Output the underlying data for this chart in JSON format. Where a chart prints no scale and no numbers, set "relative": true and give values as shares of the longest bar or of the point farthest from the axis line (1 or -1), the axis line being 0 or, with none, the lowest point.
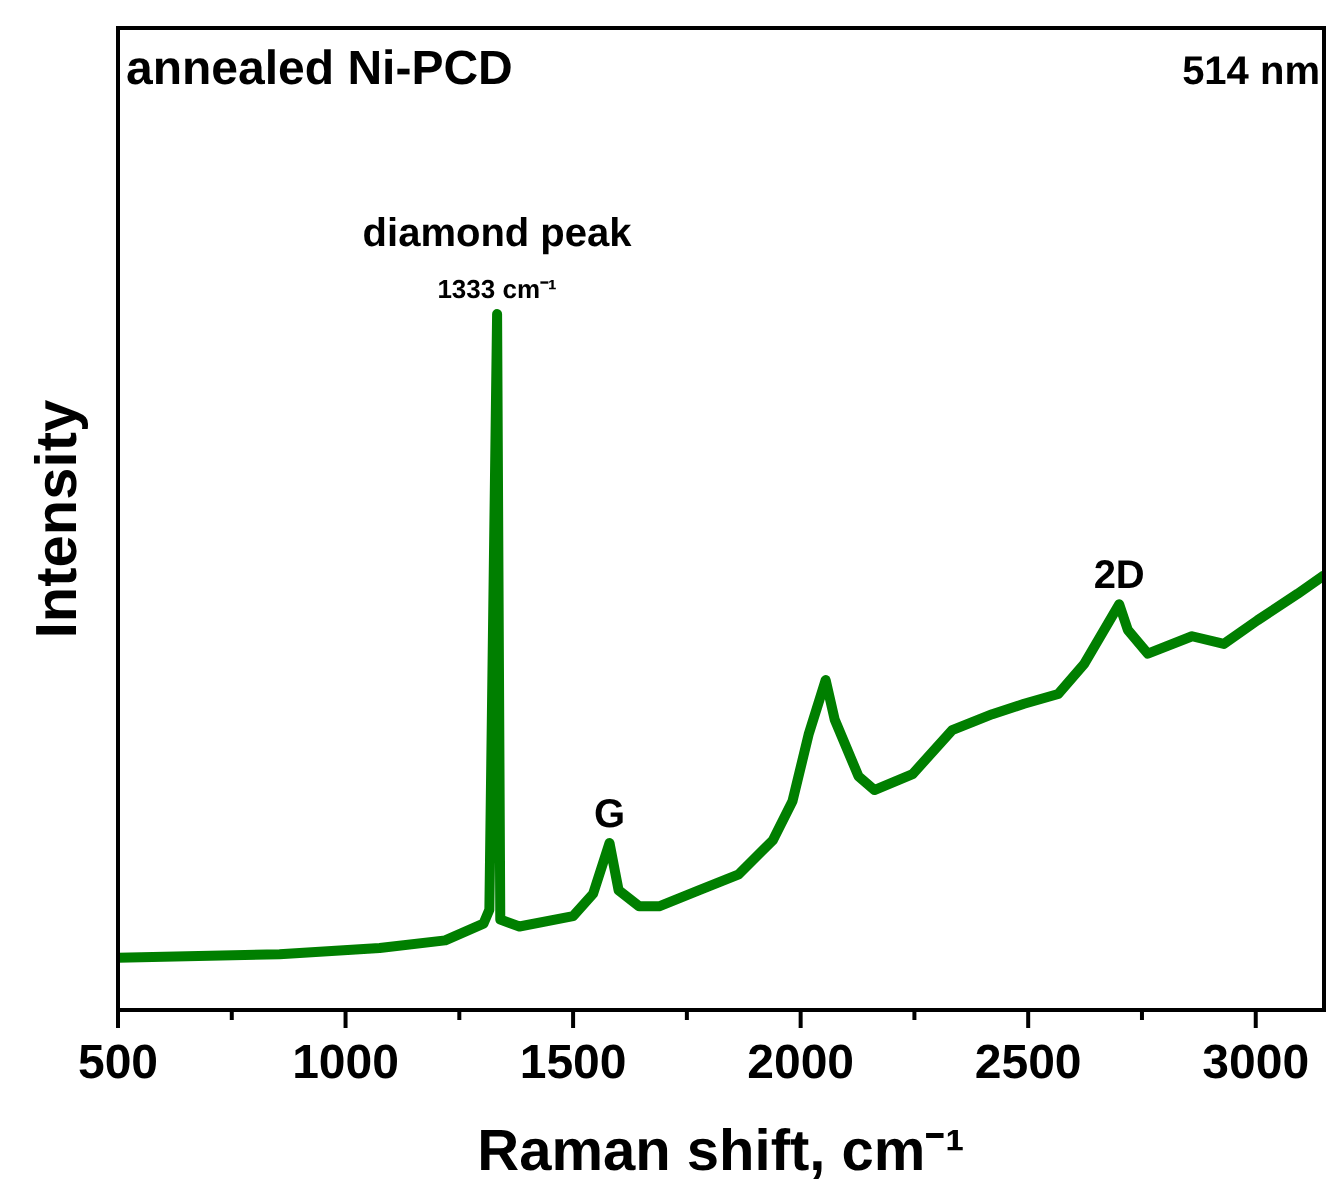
{
  "chart_data": {
    "type": "line",
    "xlabel": "Raman shift, cm⁻¹",
    "ylabel": "Intensity",
    "relative": true,
    "xlim": [
      500,
      3150
    ],
    "xticks": [
      500,
      {
        "value": 750,
        "label": null
      },
      1000,
      {
        "value": 1250,
        "label": null
      },
      1500,
      {
        "value": 1750,
        "label": null
      },
      2000,
      {
        "value": 2250,
        "label": null
      },
      2500,
      {
        "value": 2750,
        "label": null
      },
      3000
    ],
    "annotations": [
      "annealed Ni-PCD",
      "514 nm",
      {
        "text": "diamond peak",
        "x": 1333,
        "y": 1
      },
      {
        "text": "1333 cm⁻¹",
        "x": 1333,
        "y": 1
      },
      {
        "text": "G",
        "x": 1580,
        "y": 0.24
      },
      {
        "text": "2D",
        "x": 2700,
        "y": 0.583
      }
    ],
    "series": [
      {
        "color": "#007f00",
        "x": [
          500,
          855,
          1075,
          1219,
          1303,
          1316,
          1333,
          1340,
          1382,
          1500,
          1544,
          1580,
          1600,
          1645,
          1689,
          1776,
          1864,
          1939,
          1982,
          2018,
          2055,
          2075,
          2127,
          2162,
          2246,
          2333,
          2421,
          2491,
          2566,
          2623,
          2700,
          2719,
          2763,
          2860,
          2930,
          3004,
          3092,
          3149
        ],
        "values": [
          0.075,
          0.08,
          0.089,
          0.1,
          0.124,
          0.144,
          1,
          0.13,
          0.12,
          0.135,
          0.167,
          0.24,
          0.172,
          0.149,
          0.149,
          0.172,
          0.195,
          0.244,
          0.3,
          0.397,
          0.474,
          0.417,
          0.336,
          0.316,
          0.339,
          0.402,
          0.425,
          0.44,
          0.454,
          0.497,
          0.583,
          0.546,
          0.512,
          0.537,
          0.526,
          0.56,
          0.598,
          0.624
        ]
      }
    ]
  }
}
